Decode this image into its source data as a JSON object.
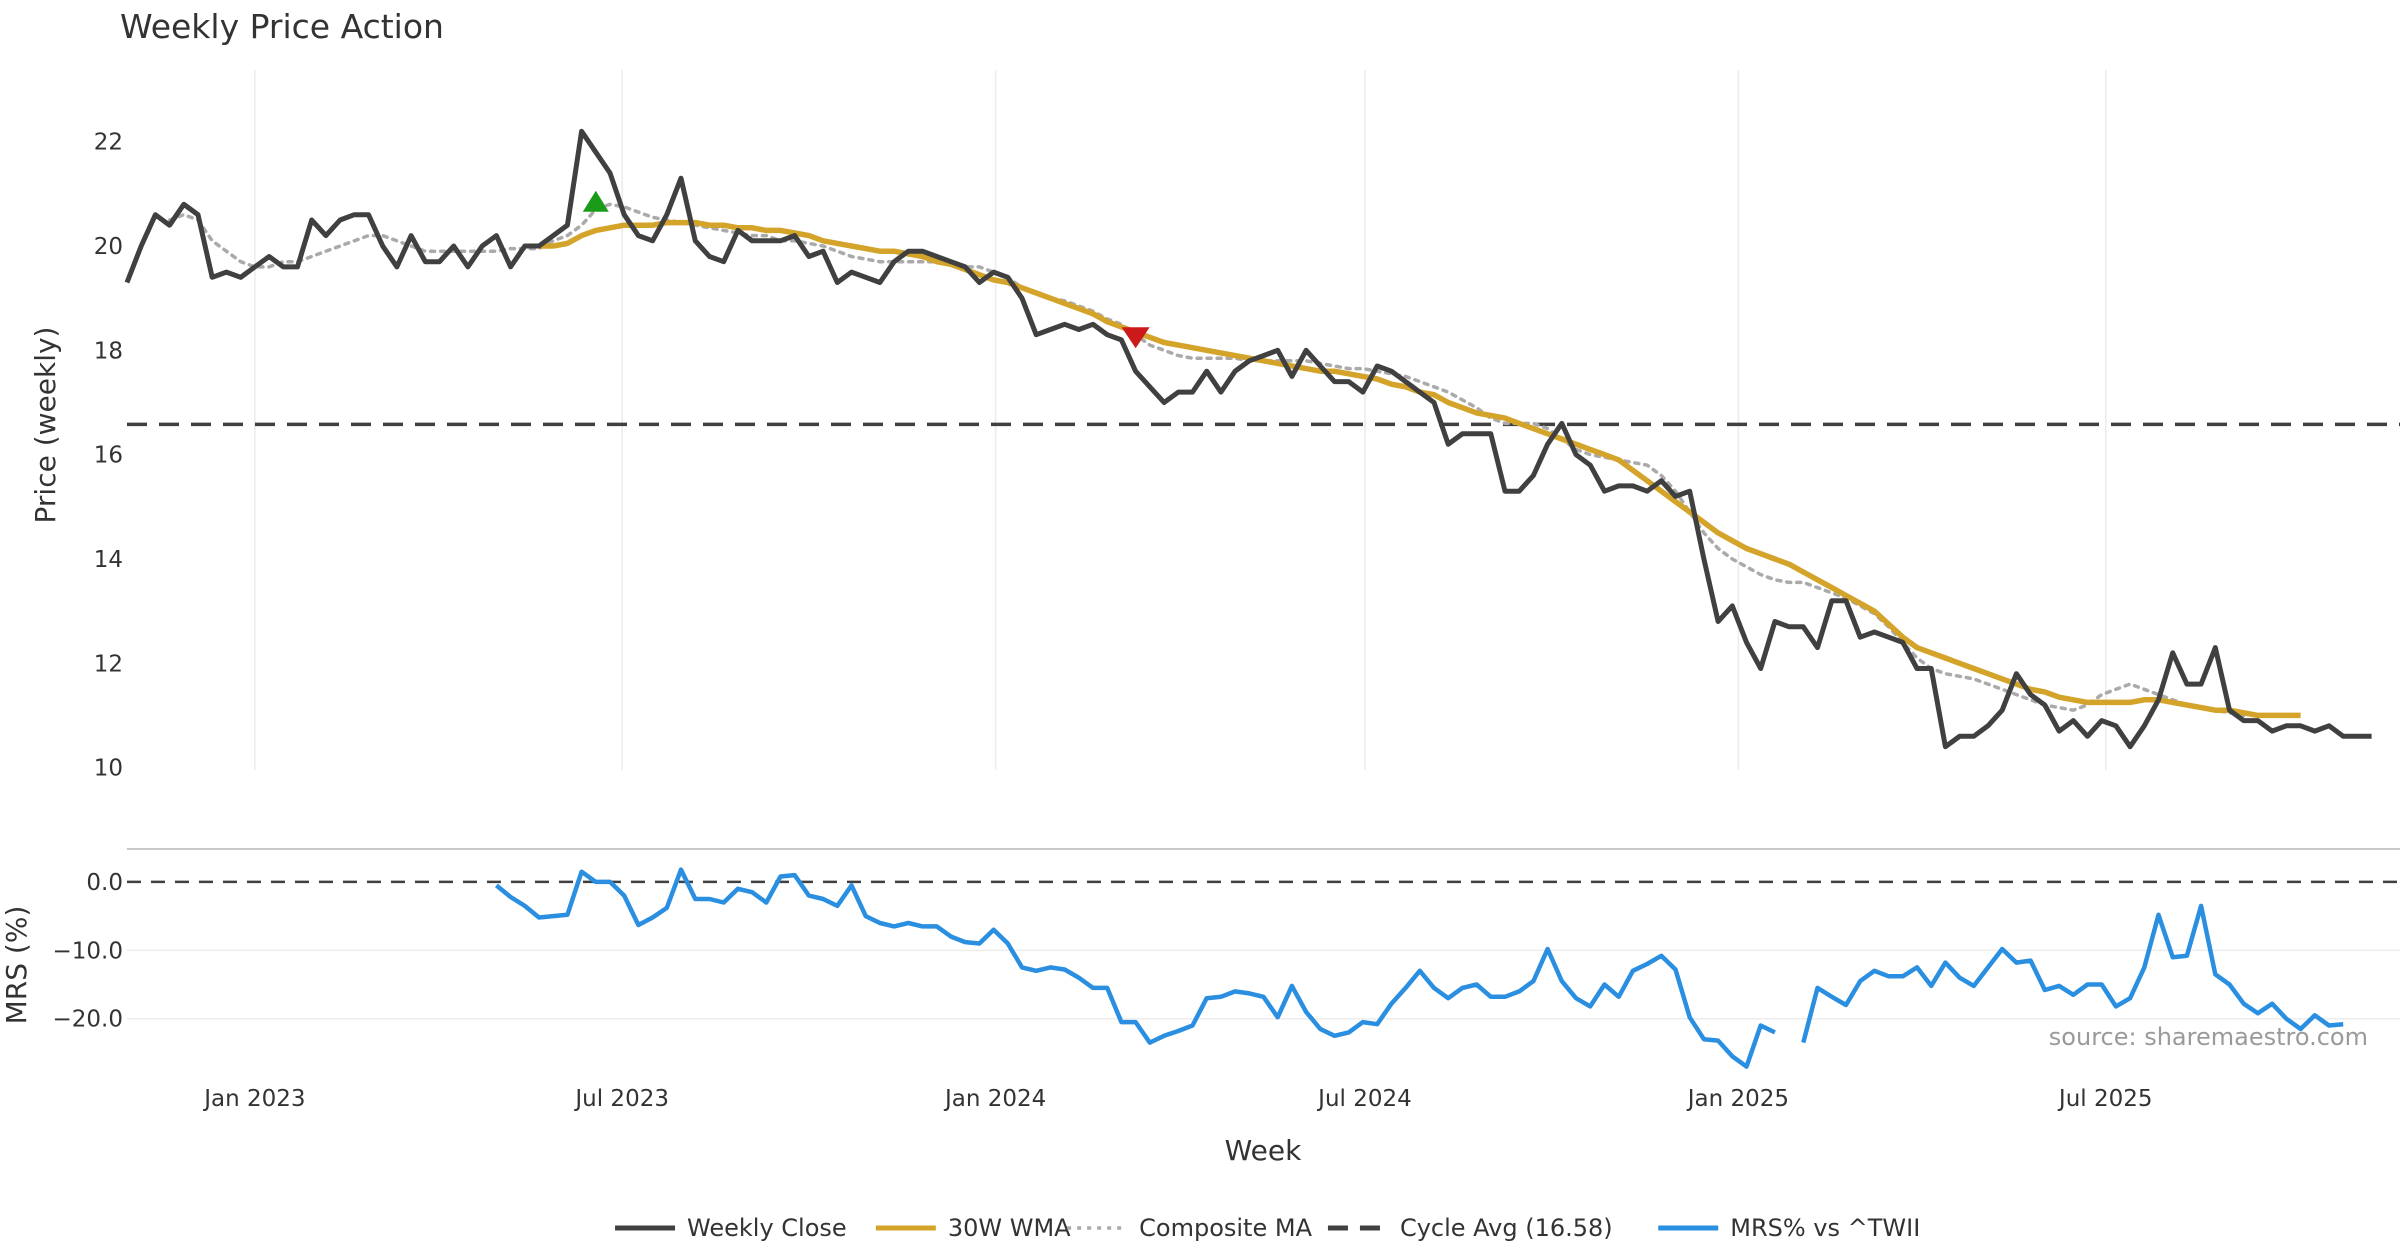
{
  "chart_data": {
    "type": "line",
    "title": "Weekly Price Action",
    "xlabel": "Week",
    "source": "source: sharemaestro.com",
    "x_ticks": [
      {
        "date": "2023-01-01",
        "label": "Jan 2023"
      },
      {
        "date": "2023-07-01",
        "label": "Jul 2023"
      },
      {
        "date": "2024-01-01",
        "label": "Jan 2024"
      },
      {
        "date": "2024-07-01",
        "label": "Jul 2024"
      },
      {
        "date": "2025-01-01",
        "label": "Jan 2025"
      },
      {
        "date": "2025-07-01",
        "label": "Jul 2025"
      }
    ],
    "x_range": [
      "2022-10-30",
      "2025-11-23"
    ],
    "price_panel": {
      "ylabel": "Price (weekly)",
      "ylim": [
        9.8,
        22.8
      ],
      "yticks": [
        10,
        12,
        14,
        16,
        18,
        20,
        22
      ],
      "cycle_avg": 16.58,
      "series": [
        {
          "name": "Weekly Close",
          "color": "#404040",
          "values": [
            19.3,
            20.0,
            20.6,
            20.4,
            20.8,
            20.6,
            19.4,
            19.5,
            19.4,
            19.6,
            19.8,
            19.6,
            19.6,
            20.5,
            20.2,
            20.5,
            20.6,
            20.6,
            20.0,
            19.6,
            20.2,
            19.7,
            19.7,
            20.0,
            19.6,
            20.0,
            20.2,
            19.6,
            20.0,
            20.0,
            20.2,
            20.4,
            22.2,
            21.8,
            21.4,
            20.6,
            20.2,
            20.1,
            20.6,
            21.3,
            20.1,
            19.8,
            19.7,
            20.3,
            20.1,
            20.1,
            20.1,
            20.2,
            19.8,
            19.9,
            19.3,
            19.5,
            19.4,
            19.3,
            19.7,
            19.9,
            19.9,
            19.8,
            19.7,
            19.6,
            19.3,
            19.5,
            19.4,
            19.0,
            18.3,
            18.4,
            18.5,
            18.4,
            18.5,
            18.3,
            18.2,
            17.6,
            17.3,
            17.0,
            17.2,
            17.2,
            17.6,
            17.2,
            17.6,
            17.8,
            17.9,
            18.0,
            17.5,
            18.0,
            17.7,
            17.4,
            17.4,
            17.2,
            17.7,
            17.6,
            17.4,
            17.2,
            17.0,
            16.2,
            16.4,
            16.4,
            16.4,
            15.3,
            15.3,
            15.6,
            16.2,
            16.6,
            16.0,
            15.8,
            15.3,
            15.4,
            15.4,
            15.3,
            15.5,
            15.2,
            15.3,
            14.0,
            12.8,
            13.1,
            12.4,
            11.9,
            12.8,
            12.7,
            12.7,
            12.3,
            13.2,
            13.2,
            12.5,
            12.6,
            12.5,
            12.4,
            11.9,
            11.9,
            10.4,
            10.6,
            10.6,
            10.8,
            11.1,
            11.8,
            11.4,
            11.2,
            10.7,
            10.9,
            10.6,
            10.9,
            10.8,
            10.4,
            10.8,
            11.3,
            12.2,
            11.6,
            11.6,
            12.3,
            11.1,
            10.9,
            10.9,
            10.7,
            10.8,
            10.8,
            10.7,
            10.8,
            10.6,
            10.6,
            10.6
          ]
        },
        {
          "name": "30W WMA",
          "color": "#d4a42a",
          "start_index": 29,
          "values": [
            20.0,
            20.0,
            20.05,
            20.2,
            20.3,
            20.35,
            20.4,
            20.4,
            20.4,
            20.45,
            20.45,
            20.45,
            20.4,
            20.4,
            20.35,
            20.35,
            20.3,
            20.3,
            20.25,
            20.2,
            20.1,
            20.05,
            20.0,
            19.95,
            19.9,
            19.9,
            19.85,
            19.8,
            19.7,
            19.65,
            19.55,
            19.45,
            19.35,
            19.3,
            19.2,
            19.1,
            19.0,
            18.9,
            18.8,
            18.7,
            18.55,
            18.45,
            18.35,
            18.25,
            18.15,
            18.1,
            18.05,
            18.0,
            17.95,
            17.9,
            17.85,
            17.8,
            17.75,
            17.7,
            17.65,
            17.6,
            17.6,
            17.55,
            17.5,
            17.45,
            17.35,
            17.3,
            17.2,
            17.15,
            17.0,
            16.9,
            16.8,
            16.75,
            16.7,
            16.6,
            16.5,
            16.4,
            16.3,
            16.2,
            16.1,
            16.0,
            15.9,
            15.7,
            15.5,
            15.3,
            15.1,
            14.9,
            14.7,
            14.5,
            14.35,
            14.2,
            14.1,
            14.0,
            13.9,
            13.75,
            13.6,
            13.45,
            13.3,
            13.15,
            13.0,
            12.75,
            12.5,
            12.3,
            12.2,
            12.1,
            12.0,
            11.9,
            11.8,
            11.7,
            11.6,
            11.5,
            11.45,
            11.35,
            11.3,
            11.25,
            11.25,
            11.25,
            11.25,
            11.3,
            11.3,
            11.25,
            11.2,
            11.15,
            11.1,
            11.1,
            11.05,
            11.0,
            11.0,
            11.0,
            11.0
          ]
        },
        {
          "name": "Composite MA",
          "color": "#aaaaaa",
          "start_index": 3,
          "values": [
            20.5,
            20.6,
            20.5,
            20.1,
            19.9,
            19.7,
            19.6,
            19.6,
            19.7,
            19.7,
            19.8,
            19.9,
            20.0,
            20.1,
            20.2,
            20.2,
            20.1,
            20.0,
            19.9,
            19.9,
            19.9,
            19.9,
            19.9,
            19.9,
            19.95,
            19.95,
            19.95,
            20.1,
            20.2,
            20.4,
            20.7,
            20.8,
            20.75,
            20.65,
            20.55,
            20.5,
            20.45,
            20.4,
            20.35,
            20.3,
            20.25,
            20.2,
            20.2,
            20.1,
            20.1,
            20.05,
            20.0,
            19.9,
            19.8,
            19.75,
            19.7,
            19.7,
            19.7,
            19.7,
            19.7,
            19.65,
            19.6,
            19.6,
            19.5,
            19.4,
            19.2,
            19.1,
            19.0,
            18.95,
            18.85,
            18.75,
            18.6,
            18.5,
            18.3,
            18.1,
            18.0,
            17.9,
            17.85,
            17.85,
            17.85,
            17.85,
            17.8,
            17.8,
            17.8,
            17.8,
            17.8,
            17.75,
            17.7,
            17.65,
            17.65,
            17.6,
            17.55,
            17.5,
            17.4,
            17.3,
            17.2,
            17.05,
            16.9,
            16.7,
            16.6,
            16.6,
            16.6,
            16.5,
            16.3,
            16.1,
            16.0,
            15.95,
            15.9,
            15.85,
            15.8,
            15.6,
            15.3,
            14.9,
            14.5,
            14.2,
            14.0,
            13.85,
            13.7,
            13.6,
            13.55,
            13.55,
            13.45,
            13.35,
            13.25,
            13.1,
            12.95,
            12.7,
            12.4,
            12.1,
            11.9,
            11.8,
            11.75,
            11.7,
            11.6,
            11.5,
            11.4,
            11.3,
            11.2,
            11.15,
            11.1,
            11.2,
            11.4,
            11.5,
            11.6,
            11.5,
            11.4,
            11.3,
            11.2,
            11.15,
            11.1,
            11.05,
            11.0
          ]
        }
      ],
      "markers": [
        {
          "type": "buy",
          "shape": "triangle-up",
          "color": "#1a9c1a",
          "x_index": 33,
          "y": 20.85
        },
        {
          "type": "sell",
          "shape": "triangle-down",
          "color": "#cc1a1a",
          "x_index": 71,
          "y": 18.25
        }
      ]
    },
    "mrs_panel": {
      "ylabel": "MRS (%)",
      "ylim": [
        -27.5,
        3.5
      ],
      "yticks": [
        0,
        -10,
        -20
      ],
      "ytick_labels": [
        "0.0",
        "−10.0",
        "−20.0"
      ],
      "series": {
        "name": "MRS% vs ^TWII",
        "color": "#2a8fe0",
        "start_index": 26,
        "values": [
          -0.5,
          -2.2,
          -3.5,
          -5.2,
          -5.0,
          -4.8,
          1.5,
          0.0,
          0.0,
          -2.0,
          -6.3,
          -5.2,
          -3.8,
          1.8,
          -2.5,
          -2.5,
          -3.0,
          -1.0,
          -1.5,
          -3.0,
          0.8,
          1.0,
          -2.0,
          -2.5,
          -3.5,
          -0.5,
          -5.0,
          -6.0,
          -6.5,
          -6.0,
          -6.5,
          -6.5,
          -8.0,
          -8.8,
          -9.0,
          -7.0,
          -9.0,
          -12.5,
          -13.0,
          -12.5,
          -12.8,
          -14.0,
          -15.5,
          -15.5,
          -20.5,
          -20.5,
          -23.5,
          -22.5,
          -21.8,
          -21.0,
          -17.0,
          -16.8,
          -16.0,
          -16.3,
          -16.8,
          -19.8,
          -15.2,
          -19.0,
          -21.5,
          -22.5,
          -22.0,
          -20.5,
          -20.8,
          -17.8,
          -15.5,
          -13.0,
          -15.5,
          -17.0,
          -15.5,
          -15.0,
          -16.8,
          -16.8,
          -16.0,
          -14.5,
          -9.8,
          -14.5,
          -17.0,
          -18.2,
          -15.0,
          -16.8,
          -13.0,
          -12.0,
          -10.8,
          -12.8,
          -19.8,
          -23.0,
          -23.2,
          -25.5,
          -27.0,
          -21.0,
          -22.0,
          null,
          -23.5,
          -15.5,
          -16.8,
          -18.0,
          -14.5,
          -13.0,
          -13.8,
          -13.8,
          -12.5,
          -15.2,
          -11.8,
          -14.0,
          -15.2,
          -12.5,
          -9.8,
          -11.8,
          -11.5,
          -15.8,
          -15.2,
          -16.5,
          -15.0,
          -15.0,
          -18.2,
          -17.0,
          -12.5,
          -4.8,
          -11.0,
          -10.8,
          -3.5,
          -13.5,
          -15.0,
          -17.8,
          -19.2,
          -17.8,
          -20.0,
          -21.5,
          -19.5,
          -21.0,
          -20.8
        ]
      }
    },
    "legend": {
      "placement": "bottom-center",
      "entries": [
        {
          "label": "Weekly Close",
          "style": "solid",
          "color": "#404040"
        },
        {
          "label": "30W WMA",
          "style": "solid",
          "color": "#d4a42a"
        },
        {
          "label": "Composite MA",
          "style": "dotted",
          "color": "#aaaaaa"
        },
        {
          "label": "Cycle Avg (16.58)",
          "style": "dashed",
          "color": "#404040"
        },
        {
          "label": "MRS% vs ^TWII",
          "style": "solid",
          "color": "#2a8fe0"
        }
      ]
    }
  }
}
